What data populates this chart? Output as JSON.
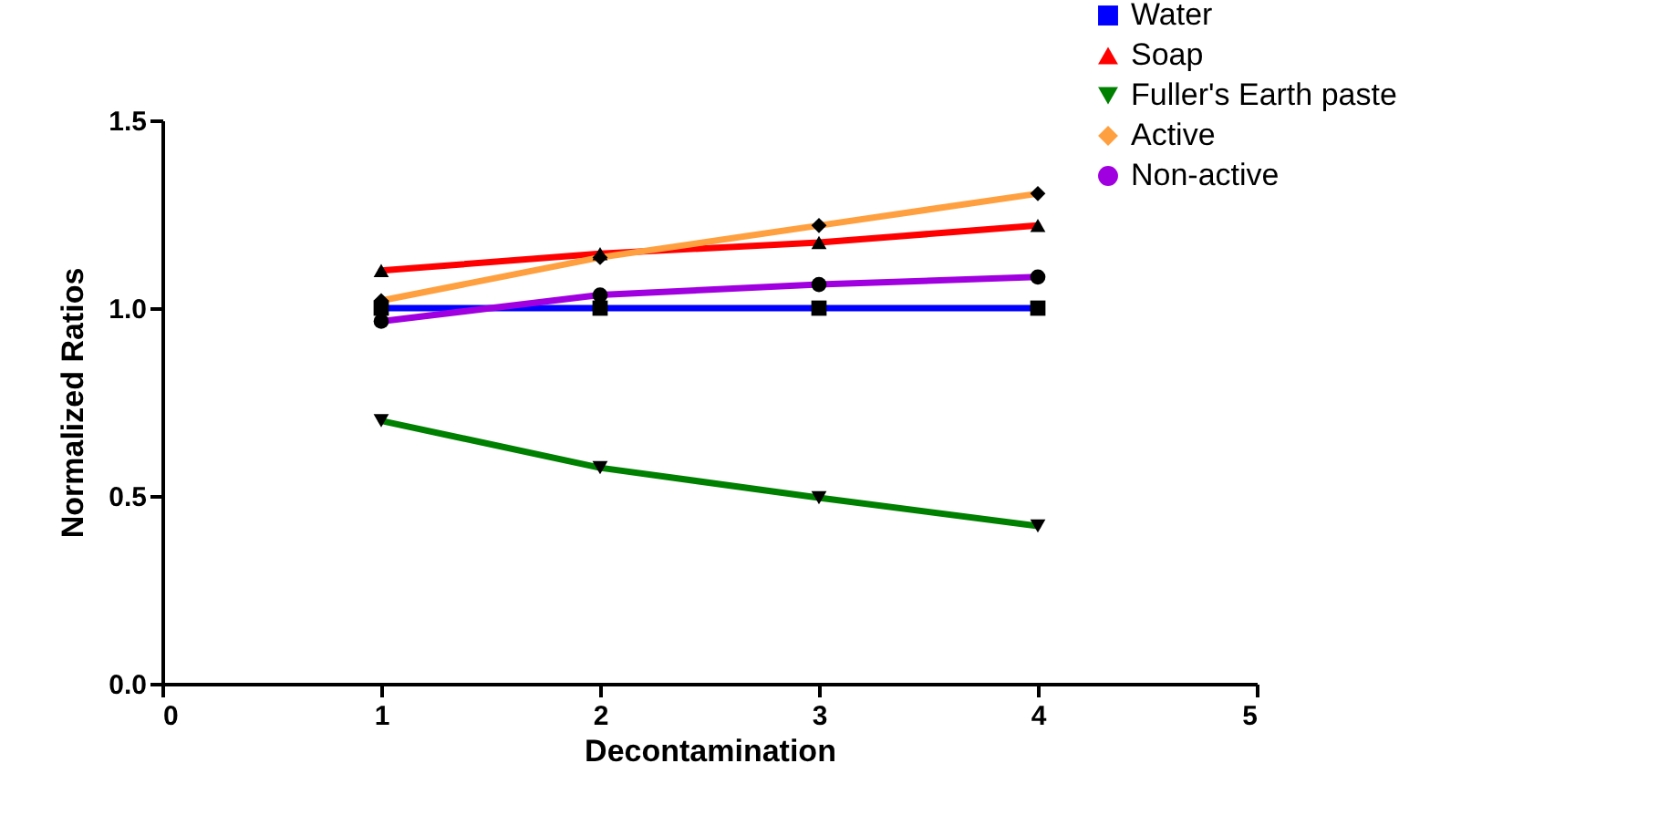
{
  "chart_data": {
    "type": "line",
    "xlabel": "Decontamination",
    "ylabel": "Normalized Ratios",
    "x": [
      1,
      2,
      3,
      4
    ],
    "series": [
      {
        "name": "Water",
        "color": "#0000ff",
        "marker": "square",
        "values": [
          1.0,
          1.0,
          1.0,
          1.0
        ]
      },
      {
        "name": "Soap",
        "color": "#ff0000",
        "marker": "triangle",
        "values": [
          1.1,
          1.145,
          1.175,
          1.22
        ]
      },
      {
        "name": "Fuller's Earth paste",
        "color": "#008000",
        "marker": "triangle-down",
        "values": [
          0.7,
          0.575,
          0.495,
          0.42
        ]
      },
      {
        "name": "Active",
        "color": "#ffa040",
        "marker": "diamond",
        "values": [
          1.02,
          1.135,
          1.22,
          1.305
        ]
      },
      {
        "name": "Non-active",
        "color": "#a000e0",
        "marker": "circle",
        "values": [
          0.965,
          1.035,
          1.063,
          1.083
        ]
      }
    ],
    "xlim": [
      0,
      5
    ],
    "xticks": [
      0,
      1,
      2,
      3,
      4,
      5
    ],
    "ylim": [
      0,
      1.5
    ],
    "yticks": [
      {
        "value": 0,
        "label": "0.0"
      },
      {
        "value": 0.5,
        "label": "0.5"
      },
      {
        "value": 1,
        "label": "1.0"
      },
      {
        "value": 1.5,
        "label": "1.5"
      }
    ],
    "grid": false,
    "legend": "top right"
  }
}
